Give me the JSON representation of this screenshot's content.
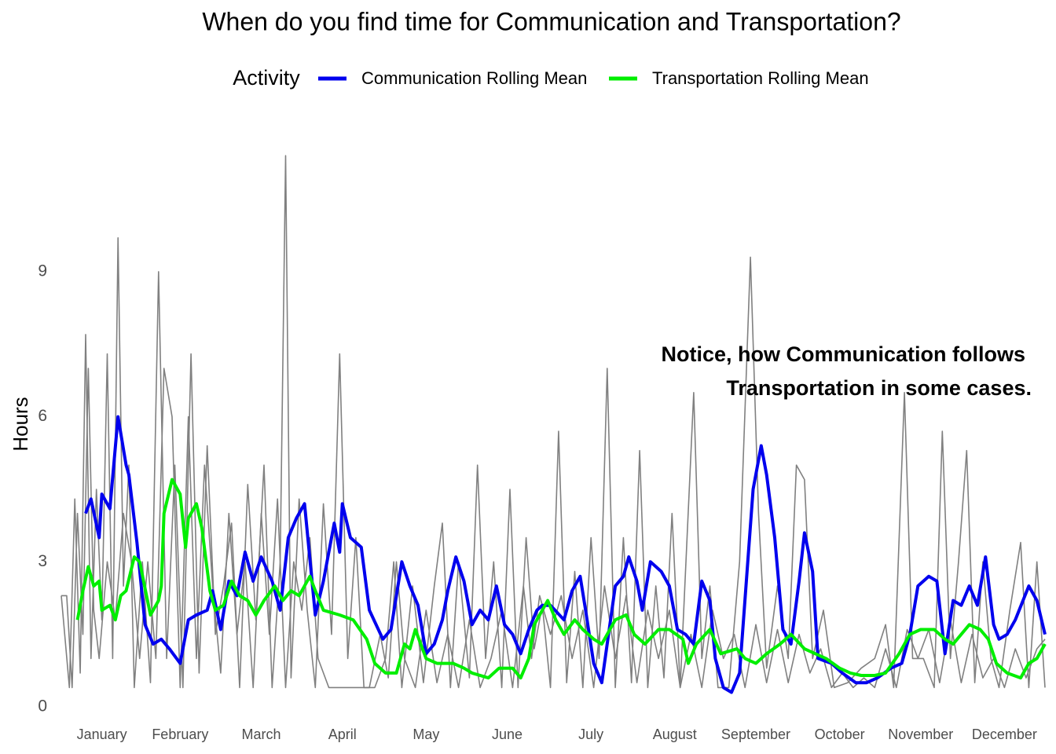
{
  "chart_data": {
    "type": "line",
    "title": "When do you find time for Communication and Transportation?",
    "ylabel": "Hours",
    "legend_title": "Activity",
    "legend": "top",
    "grid": false,
    "annotation": [
      "Notice, how Communication follows",
      "Transportation in some cases."
    ],
    "xlim": [
      1,
      365
    ],
    "xticks": [
      {
        "value": 16,
        "label": "January"
      },
      {
        "value": 45,
        "label": "February"
      },
      {
        "value": 75,
        "label": "March"
      },
      {
        "value": 105,
        "label": "April"
      },
      {
        "value": 136,
        "label": "May"
      },
      {
        "value": 166,
        "label": "June"
      },
      {
        "value": 197,
        "label": "July"
      },
      {
        "value": 228,
        "label": "August"
      },
      {
        "value": 258,
        "label": "September"
      },
      {
        "value": 289,
        "label": "October"
      },
      {
        "value": 319,
        "label": "November"
      },
      {
        "value": 350,
        "label": "December"
      }
    ],
    "ylim": [
      0,
      11.5
    ],
    "yticks": [
      0,
      3,
      6,
      9
    ],
    "series": [
      {
        "color": "#808080",
        "width": 1.6,
        "x": [
          1,
          4,
          6,
          8,
          10,
          12,
          14,
          16,
          18,
          20,
          22,
          24,
          26,
          28,
          31,
          34,
          37,
          40,
          43,
          46,
          49,
          52,
          55,
          58,
          61,
          64,
          67,
          70,
          73,
          76,
          79,
          82,
          84,
          86,
          89,
          92,
          95,
          98,
          101,
          104,
          107,
          110,
          113,
          117,
          121,
          124,
          127,
          131,
          135,
          139,
          142,
          145,
          148,
          152,
          155,
          158,
          161,
          164,
          167,
          170,
          173,
          176,
          179,
          182,
          185,
          188,
          191,
          194,
          197,
          200,
          203,
          206,
          209,
          212,
          215,
          218,
          221,
          224,
          227,
          230,
          235,
          238,
          241,
          244,
          248,
          252,
          256,
          259,
          262,
          266,
          270,
          273,
          276,
          279,
          283,
          287,
          292,
          297,
          302,
          306,
          309,
          313,
          316,
          320,
          324,
          327,
          330,
          333,
          336,
          339,
          342,
          345,
          348,
          352,
          356,
          359,
          362,
          365
        ],
        "values": [
          2.3,
          0.4,
          4.3,
          0.7,
          7.7,
          1.0,
          4.5,
          1.8,
          7.3,
          1.0,
          9.7,
          2.5,
          5.0,
          0.4,
          3.0,
          0.5,
          9.0,
          1.0,
          5.0,
          0.4,
          7.3,
          0.7,
          5.4,
          1.5,
          2.5,
          3.8,
          0.4,
          4.6,
          1.8,
          5.0,
          0.4,
          3.0,
          11.4,
          0.6,
          4.3,
          2.0,
          0.4,
          4.2,
          1.5,
          7.3,
          1.0,
          3.5,
          0.4,
          0.4,
          1.0,
          3.0,
          0.4,
          2.5,
          0.5,
          2.5,
          3.8,
          0.4,
          3.0,
          0.6,
          5.0,
          1.0,
          3.0,
          0.4,
          4.5,
          0.4,
          3.5,
          1.2,
          2.1,
          0.4,
          5.7,
          0.5,
          2.8,
          0.4,
          3.5,
          1.0,
          7.0,
          0.4,
          3.5,
          0.5,
          5.3,
          0.4,
          2.5,
          0.6,
          4.0,
          0.4,
          6.5,
          1.0,
          2.5,
          0.4,
          0.4,
          3.0,
          9.3,
          4.0,
          0.8,
          2.5,
          1.0,
          5.0,
          4.7,
          1.0,
          2.0,
          0.4,
          0.5,
          0.8,
          1.0,
          1.7,
          0.4,
          6.5,
          1.0,
          1.0,
          0.4,
          5.7,
          1.0,
          3.0,
          5.3,
          0.5,
          3.0,
          1.0,
          0.4,
          2.0,
          3.4,
          0.4,
          3.0,
          0.4
        ]
      },
      {
        "color": "#808080",
        "width": 1.6,
        "x": [
          1,
          3,
          5,
          7,
          9,
          11,
          13,
          15,
          18,
          21,
          24,
          27,
          30,
          33,
          36,
          39,
          42,
          45,
          48,
          51,
          54,
          57,
          60,
          63,
          66,
          69,
          72,
          75,
          78,
          81,
          84,
          87,
          90,
          93,
          96,
          100,
          105,
          110,
          115,
          119,
          122,
          125,
          128,
          132,
          136,
          140,
          144,
          148,
          152,
          156,
          160,
          164,
          168,
          172,
          175,
          178,
          182,
          186,
          190,
          194,
          198,
          202,
          206,
          210,
          214,
          218,
          222,
          226,
          230,
          234,
          238,
          242,
          246,
          250,
          254,
          258,
          262,
          266,
          270,
          274,
          278,
          282,
          286,
          290,
          294,
          298,
          302,
          306,
          310,
          314,
          318,
          322,
          326,
          330,
          334,
          338,
          342,
          346,
          350,
          354,
          358,
          362,
          365
        ],
        "values": [
          2.3,
          2.3,
          0.4,
          4.0,
          1.5,
          7.0,
          2.0,
          1.0,
          3.0,
          1.8,
          4.0,
          3.0,
          1.0,
          3.0,
          1.0,
          7.0,
          6.0,
          0.4,
          6.0,
          1.0,
          5.0,
          2.5,
          0.7,
          4.0,
          1.5,
          3.0,
          0.4,
          4.0,
          1.5,
          4.3,
          0.4,
          3.0,
          2.0,
          3.5,
          1.0,
          0.4,
          0.4,
          0.4,
          0.4,
          1.5,
          0.6,
          3.0,
          1.0,
          0.4,
          2.0,
          0.5,
          1.5,
          0.4,
          1.8,
          0.4,
          1.0,
          2.0,
          0.4,
          2.5,
          1.0,
          2.3,
          1.5,
          2.3,
          1.0,
          2.0,
          0.4,
          2.5,
          1.0,
          2.3,
          0.5,
          2.0,
          1.0,
          2.0,
          0.4,
          1.5,
          0.4,
          2.0,
          1.0,
          1.5,
          0.4,
          1.7,
          0.5,
          1.6,
          0.5,
          1.5,
          0.7,
          1.2,
          0.4,
          0.7,
          0.4,
          0.6,
          0.4,
          1.2,
          0.4,
          1.6,
          1.0,
          1.6,
          0.5,
          1.8,
          0.5,
          1.5,
          0.6,
          1.0,
          0.4,
          1.2,
          0.6,
          1.2,
          1.4
        ]
      },
      {
        "name": "Communication Rolling Mean",
        "color": "#0000ee",
        "width": 4,
        "x": [
          10,
          12,
          15,
          16,
          19,
          22,
          25,
          26,
          29,
          32,
          35,
          38,
          41,
          45,
          48,
          51,
          55,
          57,
          60,
          63,
          66,
          69,
          72,
          75,
          79,
          82,
          85,
          88,
          91,
          95,
          98,
          102,
          104,
          105,
          108,
          112,
          115,
          120,
          123,
          127,
          130,
          133,
          136,
          139,
          142,
          144,
          147,
          150,
          153,
          156,
          159,
          162,
          165,
          168,
          171,
          174,
          177,
          179,
          182,
          187,
          190,
          193,
          195,
          198,
          201,
          206,
          209,
          211,
          214,
          216,
          219,
          223,
          226,
          229,
          232,
          235,
          238,
          241,
          243,
          246,
          249,
          252,
          257,
          260,
          262,
          265,
          268,
          271,
          274,
          276,
          279,
          281,
          286,
          290,
          295,
          299,
          303,
          308,
          312,
          315,
          318,
          322,
          325,
          328,
          331,
          334,
          337,
          340,
          343,
          346,
          348,
          351,
          354,
          359,
          362,
          365
        ],
        "values": [
          4.0,
          4.3,
          3.5,
          4.4,
          4.1,
          6.0,
          5.0,
          4.8,
          3.4,
          1.7,
          1.3,
          1.4,
          1.2,
          0.9,
          1.8,
          1.9,
          2.0,
          2.4,
          1.6,
          2.6,
          2.3,
          3.2,
          2.6,
          3.1,
          2.6,
          2.0,
          3.5,
          3.9,
          4.2,
          1.9,
          2.6,
          3.8,
          3.2,
          4.2,
          3.5,
          3.3,
          2.0,
          1.4,
          1.6,
          3.0,
          2.5,
          2.1,
          1.1,
          1.3,
          1.8,
          2.4,
          3.1,
          2.6,
          1.7,
          2.0,
          1.8,
          2.5,
          1.7,
          1.5,
          1.1,
          1.6,
          2.0,
          2.1,
          2.1,
          1.8,
          2.4,
          2.7,
          2.0,
          0.9,
          0.5,
          2.5,
          2.7,
          3.1,
          2.6,
          2.0,
          3.0,
          2.8,
          2.5,
          1.6,
          1.5,
          1.3,
          2.6,
          2.2,
          1.0,
          0.4,
          0.3,
          0.7,
          4.5,
          5.4,
          4.8,
          3.5,
          1.6,
          1.3,
          2.6,
          3.6,
          2.8,
          1.0,
          0.9,
          0.7,
          0.5,
          0.5,
          0.6,
          0.8,
          0.9,
          1.5,
          2.5,
          2.7,
          2.6,
          1.1,
          2.2,
          2.1,
          2.5,
          2.1,
          3.1,
          1.7,
          1.4,
          1.5,
          1.8,
          2.5,
          2.2,
          1.5
        ]
      },
      {
        "name": "Transportation Rolling Mean",
        "color": "#00ee00",
        "width": 4,
        "x": [
          7,
          9,
          11,
          13,
          15,
          16,
          19,
          21,
          23,
          25,
          28,
          30,
          34,
          37,
          38,
          39,
          42,
          45,
          47,
          48,
          51,
          53,
          56,
          58,
          61,
          64,
          67,
          70,
          73,
          76,
          80,
          83,
          86,
          89,
          93,
          95,
          98,
          104,
          109,
          114,
          117,
          121,
          125,
          128,
          130,
          132,
          136,
          140,
          146,
          150,
          153,
          159,
          163,
          168,
          171,
          174,
          176,
          181,
          184,
          187,
          191,
          194,
          198,
          201,
          206,
          210,
          213,
          217,
          222,
          226,
          231,
          233,
          236,
          241,
          245,
          251,
          254,
          258,
          262,
          267,
          271,
          276,
          280,
          284,
          289,
          293,
          297,
          302,
          306,
          311,
          315,
          319,
          324,
          328,
          331,
          337,
          341,
          344,
          347,
          351,
          356,
          359,
          362,
          365
        ],
        "values": [
          1.8,
          2.4,
          2.9,
          2.5,
          2.6,
          2.0,
          2.1,
          1.8,
          2.3,
          2.4,
          3.1,
          3.0,
          1.9,
          2.2,
          2.5,
          4.0,
          4.7,
          4.4,
          3.3,
          3.9,
          4.2,
          3.7,
          2.4,
          2.0,
          2.1,
          2.6,
          2.3,
          2.2,
          1.9,
          2.2,
          2.5,
          2.2,
          2.4,
          2.3,
          2.7,
          2.4,
          2.0,
          1.9,
          1.8,
          1.4,
          0.9,
          0.7,
          0.7,
          1.3,
          1.2,
          1.6,
          1.0,
          0.9,
          0.9,
          0.8,
          0.7,
          0.6,
          0.8,
          0.8,
          0.6,
          1.0,
          1.7,
          2.2,
          1.8,
          1.5,
          1.8,
          1.6,
          1.4,
          1.3,
          1.8,
          1.9,
          1.5,
          1.3,
          1.6,
          1.6,
          1.4,
          0.9,
          1.3,
          1.6,
          1.1,
          1.2,
          1.0,
          0.9,
          1.1,
          1.3,
          1.5,
          1.2,
          1.1,
          1.0,
          0.8,
          0.7,
          0.65,
          0.65,
          0.7,
          1.1,
          1.5,
          1.6,
          1.6,
          1.4,
          1.3,
          1.7,
          1.6,
          1.4,
          0.9,
          0.7,
          0.6,
          0.9,
          1.0,
          1.3
        ]
      }
    ]
  }
}
